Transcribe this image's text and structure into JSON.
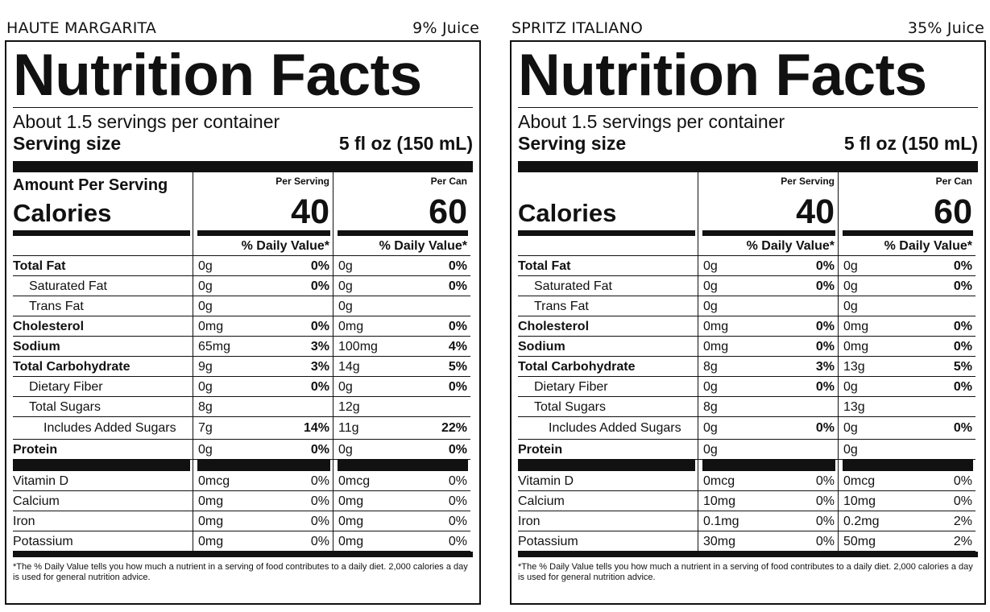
{
  "panels": [
    {
      "name": "HAUTE MARGARITA",
      "juice": "9% Juice",
      "title": "Nutrition Facts",
      "servings": "About 1.5 servings per container",
      "serving_size_label": "Serving size",
      "serving_size_value": "5 fl oz (150 mL)",
      "amount_per_serving": "Amount Per Serving",
      "calories_label": "Calories",
      "per_serving_label": "Per Serving",
      "per_can_label": "Per Can",
      "calories_serving": "40",
      "calories_can": "60",
      "dv_label": "% Daily Value*",
      "nutrients": [
        {
          "label": "Total Fat",
          "s": "0g",
          "sp": "0%",
          "c": "0g",
          "cp": "0%"
        },
        {
          "label": "Saturated Fat",
          "s": "0g",
          "sp": "0%",
          "c": "0g",
          "cp": "0%"
        },
        {
          "label": "Trans Fat",
          "s": "0g",
          "sp": "",
          "c": "0g",
          "cp": ""
        },
        {
          "label": "Cholesterol",
          "s": "0mg",
          "sp": "0%",
          "c": "0mg",
          "cp": "0%"
        },
        {
          "label": "Sodium",
          "s": "65mg",
          "sp": "3%",
          "c": "100mg",
          "cp": "4%"
        },
        {
          "label": "Total Carbohydrate",
          "s": "9g",
          "sp": "3%",
          "c": "14g",
          "cp": "5%"
        },
        {
          "label": "Dietary Fiber",
          "s": "0g",
          "sp": "0%",
          "c": "0g",
          "cp": "0%"
        },
        {
          "label": "Total Sugars",
          "s": "8g",
          "sp": "",
          "c": "12g",
          "cp": ""
        },
        {
          "label": "Includes Added Sugars",
          "s": "7g",
          "sp": "14%",
          "c": "11g",
          "cp": "22%"
        },
        {
          "label": "Protein",
          "s": "0g",
          "sp": "0%",
          "c": "0g",
          "cp": "0%"
        }
      ],
      "vitamins": [
        {
          "label": "Vitamin D",
          "s": "0mcg",
          "sp": "0%",
          "c": "0mcg",
          "cp": "0%"
        },
        {
          "label": "Calcium",
          "s": "0mg",
          "sp": "0%",
          "c": "0mg",
          "cp": "0%"
        },
        {
          "label": "Iron",
          "s": "0mg",
          "sp": "0%",
          "c": "0mg",
          "cp": "0%"
        },
        {
          "label": "Potassium",
          "s": "0mg",
          "sp": "0%",
          "c": "0mg",
          "cp": "0%"
        }
      ],
      "footnote": "*The % Daily Value tells you how much a nutrient in a serving of food contributes to a daily diet. 2,000 calories a day is used for general nutrition advice."
    },
    {
      "name": "SPRITZ ITALIANO",
      "juice": "35% Juice",
      "title": "Nutrition Facts",
      "servings": "About 1.5 servings per container",
      "serving_size_label": "Serving size",
      "serving_size_value": "5 fl oz (150 mL)",
      "amount_per_serving": "",
      "calories_label": "Calories",
      "per_serving_label": "Per Serving",
      "per_can_label": "Per Can",
      "calories_serving": "40",
      "calories_can": "60",
      "dv_label": "% Daily Value*",
      "nutrients": [
        {
          "label": "Total Fat",
          "s": "0g",
          "sp": "0%",
          "c": "0g",
          "cp": "0%"
        },
        {
          "label": "Saturated Fat",
          "s": "0g",
          "sp": "0%",
          "c": "0g",
          "cp": "0%"
        },
        {
          "label": "Trans Fat",
          "s": "0g",
          "sp": "",
          "c": "0g",
          "cp": ""
        },
        {
          "label": "Cholesterol",
          "s": "0mg",
          "sp": "0%",
          "c": "0mg",
          "cp": "0%"
        },
        {
          "label": "Sodium",
          "s": "0mg",
          "sp": "0%",
          "c": "0mg",
          "cp": "0%"
        },
        {
          "label": "Total Carbohydrate",
          "s": "8g",
          "sp": "3%",
          "c": "13g",
          "cp": "5%"
        },
        {
          "label": "Dietary Fiber",
          "s": "0g",
          "sp": "0%",
          "c": "0g",
          "cp": "0%"
        },
        {
          "label": "Total Sugars",
          "s": "8g",
          "sp": "",
          "c": "13g",
          "cp": ""
        },
        {
          "label": "Includes Added Sugars",
          "s": "0g",
          "sp": "0%",
          "c": "0g",
          "cp": "0%"
        },
        {
          "label": "Protein",
          "s": "0g",
          "sp": "",
          "c": "0g",
          "cp": ""
        }
      ],
      "vitamins": [
        {
          "label": "Vitamin D",
          "s": "0mcg",
          "sp": "0%",
          "c": "0mcg",
          "cp": "0%"
        },
        {
          "label": "Calcium",
          "s": "10mg",
          "sp": "0%",
          "c": "10mg",
          "cp": "0%"
        },
        {
          "label": "Iron",
          "s": "0.1mg",
          "sp": "0%",
          "c": "0.2mg",
          "cp": "2%"
        },
        {
          "label": "Potassium",
          "s": "30mg",
          "sp": "0%",
          "c": "50mg",
          "cp": "2%"
        }
      ],
      "footnote": "*The % Daily Value tells you how much a nutrient in a serving of food contributes to a daily diet. 2,000 calories a day is used for general nutrition advice."
    }
  ]
}
